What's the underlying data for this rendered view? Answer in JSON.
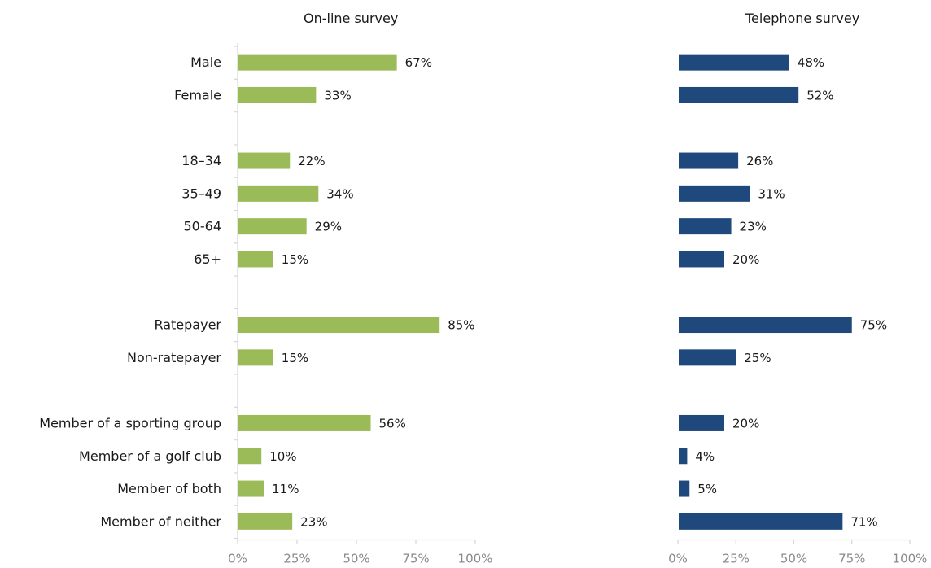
{
  "chart_data": {
    "type": "bar",
    "orientation": "horizontal",
    "categories": [
      "Male",
      "Female",
      "",
      "18–34",
      "35–49",
      "50-64",
      "65+",
      "",
      "Ratepayer",
      "Non-ratepayer",
      "",
      "Member of a sporting group",
      "Member of a golf club",
      "Member of both",
      "Member of neither"
    ],
    "series": [
      {
        "name": "On-line survey",
        "color": "#9bbb59",
        "values": [
          67,
          33,
          null,
          22,
          34,
          29,
          15,
          null,
          85,
          15,
          null,
          56,
          10,
          11,
          23
        ],
        "labels": [
          "67%",
          "33%",
          "",
          "22%",
          "34%",
          "29%",
          "15%",
          "",
          "85%",
          "15%",
          "",
          "56%",
          "10%",
          "11%",
          "23%"
        ]
      },
      {
        "name": "Telephone survey",
        "color": "#1f497d",
        "values": [
          48,
          52,
          null,
          26,
          31,
          23,
          20,
          null,
          75,
          25,
          null,
          20,
          4,
          5,
          71
        ],
        "labels": [
          "48%",
          "52%",
          "",
          "26%",
          "31%",
          "23%",
          "20%",
          "",
          "75%",
          "25%",
          "",
          "20%",
          "4%",
          "5%",
          "71%"
        ]
      }
    ],
    "xlim": [
      0,
      100
    ],
    "x_ticks": [
      "0%",
      "25%",
      "50%",
      "75%",
      "100%"
    ],
    "xlabel": "",
    "ylabel": "",
    "grid": false,
    "legend": "none"
  }
}
